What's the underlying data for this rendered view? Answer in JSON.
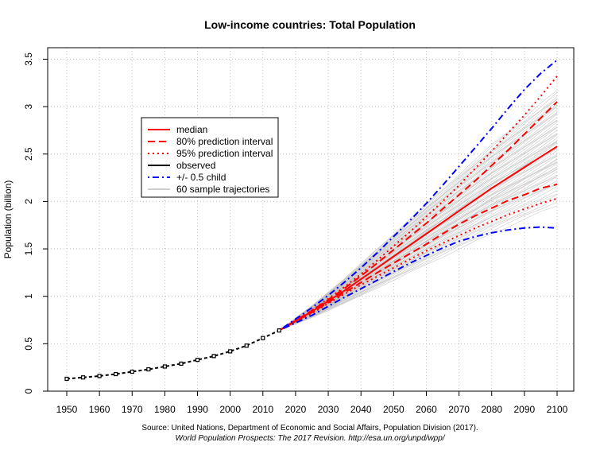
{
  "chart_data": {
    "type": "line",
    "title": "Low-income countries: Total Population",
    "ylabel": "Population (billion)",
    "xlabel": "",
    "xlim": [
      1945,
      2102
    ],
    "ylim": [
      0,
      3.6
    ],
    "x_ticks": [
      1950,
      1960,
      1970,
      1980,
      1990,
      2000,
      2010,
      2020,
      2030,
      2040,
      2050,
      2060,
      2070,
      2080,
      2090,
      2100
    ],
    "x_tick_labels": [
      "1950",
      "1960",
      "1970",
      "1980",
      "1990",
      "2000",
      "2010",
      "2020",
      "2030",
      "2040",
      "2050",
      "2060",
      "2070",
      "2080",
      "2090",
      "2100"
    ],
    "y_ticks": [
      0,
      0.5,
      1,
      1.5,
      2,
      2.5,
      3,
      3.5
    ],
    "y_tick_labels": [
      "0",
      "0.5",
      "1",
      "1.5",
      "2",
      "2.5",
      "3",
      "3.5"
    ],
    "grid": true,
    "legend_position": "top-left",
    "source_line1": "Source: United Nations, Department of Economic and Social Affairs, Population Division (2017).",
    "source_line2": "World Population Prospects: The 2017 Revision. http://esa.un.org/unpd/wpp/",
    "legend": [
      {
        "label": "median",
        "color": "#ff0000",
        "dash": "solid",
        "key": "median"
      },
      {
        "label": "80% prediction interval",
        "color": "#ff0000",
        "dash": "dashed",
        "key": "pi80"
      },
      {
        "label": "95% prediction interval",
        "color": "#ff0000",
        "dash": "dotted",
        "key": "pi95"
      },
      {
        "label": "observed",
        "color": "#000000",
        "dash": "solid",
        "key": "observed"
      },
      {
        "label": "+/- 0.5 child",
        "color": "#0000ff",
        "dash": "dotdash",
        "key": "half_child"
      },
      {
        "label": "60 sample trajectories",
        "color": "#bebebe",
        "dash": "solid",
        "key": "trajectories"
      }
    ],
    "colors": {
      "median": "#ff0000",
      "interval": "#ff0000",
      "observed": "#000000",
      "half_child": "#0000ff",
      "trajectory": "#bebebe",
      "grid": "#bebebe"
    },
    "observed": {
      "x": [
        1950,
        1955,
        1960,
        1965,
        1970,
        1975,
        1980,
        1985,
        1990,
        1995,
        2000,
        2005,
        2010,
        2015
      ],
      "y": [
        0.13,
        0.145,
        0.16,
        0.18,
        0.205,
        0.23,
        0.26,
        0.29,
        0.33,
        0.37,
        0.42,
        0.48,
        0.56,
        0.64
      ]
    },
    "projection_x": [
      2015,
      2020,
      2025,
      2030,
      2035,
      2040,
      2045,
      2050,
      2055,
      2060,
      2065,
      2070,
      2075,
      2080,
      2085,
      2090,
      2095,
      2100
    ],
    "series": [
      {
        "name": "median",
        "key": "median",
        "y": [
          0.64,
          0.74,
          0.84,
          0.95,
          1.06,
          1.18,
          1.3,
          1.42,
          1.54,
          1.66,
          1.78,
          1.9,
          2.02,
          2.14,
          2.25,
          2.36,
          2.47,
          2.58
        ]
      },
      {
        "name": "80% prediction interval",
        "key": "pi80_upper",
        "y": [
          0.64,
          0.745,
          0.85,
          0.965,
          1.085,
          1.215,
          1.35,
          1.49,
          1.63,
          1.77,
          1.92,
          2.07,
          2.22,
          2.38,
          2.54,
          2.71,
          2.88,
          3.05
        ]
      },
      {
        "name": "80% prediction interval",
        "key": "pi80_lower",
        "y": [
          0.64,
          0.735,
          0.83,
          0.935,
          1.04,
          1.145,
          1.25,
          1.35,
          1.45,
          1.55,
          1.66,
          1.76,
          1.85,
          1.93,
          2.01,
          2.07,
          2.14,
          2.18
        ]
      },
      {
        "name": "95% prediction interval",
        "key": "pi95_upper",
        "y": [
          0.64,
          0.75,
          0.855,
          0.975,
          1.1,
          1.235,
          1.38,
          1.53,
          1.68,
          1.84,
          2.0,
          2.17,
          2.35,
          2.53,
          2.72,
          2.91,
          3.11,
          3.32
        ]
      },
      {
        "name": "95% prediction interval",
        "key": "pi95_lower",
        "y": [
          0.64,
          0.73,
          0.82,
          0.925,
          1.025,
          1.12,
          1.21,
          1.3,
          1.39,
          1.48,
          1.56,
          1.64,
          1.72,
          1.79,
          1.86,
          1.92,
          1.98,
          2.03
        ]
      },
      {
        "name": "+/- 0.5 child",
        "key": "half_upper",
        "y": [
          0.64,
          0.76,
          0.88,
          1.01,
          1.15,
          1.3,
          1.46,
          1.63,
          1.8,
          1.98,
          2.17,
          2.37,
          2.57,
          2.77,
          2.98,
          3.18,
          3.35,
          3.49
        ]
      },
      {
        "name": "+/- 0.5 child",
        "key": "half_lower",
        "y": [
          0.64,
          0.72,
          0.8,
          0.895,
          0.99,
          1.08,
          1.17,
          1.26,
          1.35,
          1.43,
          1.51,
          1.58,
          1.63,
          1.67,
          1.7,
          1.72,
          1.73,
          1.72
        ]
      }
    ],
    "sample_trajectories_end_y": [
      1.96,
      2.0,
      2.03,
      2.06,
      2.09,
      2.12,
      2.15,
      2.18,
      2.2,
      2.22,
      2.25,
      2.27,
      2.29,
      2.31,
      2.33,
      2.35,
      2.37,
      2.39,
      2.41,
      2.43,
      2.45,
      2.47,
      2.49,
      2.51,
      2.53,
      2.55,
      2.57,
      2.59,
      2.61,
      2.63,
      2.65,
      2.67,
      2.69,
      2.71,
      2.73,
      2.75,
      2.77,
      2.79,
      2.81,
      2.83,
      2.85,
      2.87,
      2.89,
      2.91,
      2.93,
      2.95,
      2.97,
      2.99,
      3.01,
      3.03,
      3.05,
      3.07,
      3.09,
      3.11,
      3.14,
      3.17,
      2.58,
      2.44,
      2.62,
      2.36
    ]
  }
}
